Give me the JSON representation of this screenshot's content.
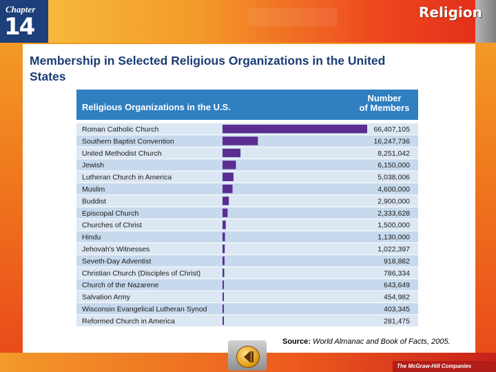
{
  "header": {
    "chapter_label": "Chapter",
    "chapter_number": "14",
    "section": "Religion"
  },
  "page_title": "Membership in Selected Religious Organizations in the United States",
  "source": {
    "label": "Source:",
    "text": "World Almanac and Book of Facts, 2005."
  },
  "footer": {
    "publisher": "The McGraw-Hill Companies"
  },
  "colors": {
    "table_header_bg": "#2f7fc1",
    "row_light": "#dbe7f3",
    "row_dark": "#c7d9ec",
    "bar": "#5b2d91"
  },
  "chart_data": {
    "type": "bar",
    "orientation": "horizontal",
    "title": "",
    "column_headers": [
      "Religious Organizations in the U.S.",
      "Number of Members"
    ],
    "categories": [
      "Roman Catholic Church",
      "Southern Baptist Convention",
      "United Methodist Church",
      "Jewish",
      "Lutheran Church in America",
      "Muslim",
      "Buddist",
      "Episcopal Church",
      "Churches of Christ",
      "Hindu",
      "Jehovah's Witnesses",
      "Seveth-Day Adventist",
      "Christian Church (Disciples of Christ)",
      "Church of the Nazarene",
      "Salvation Army",
      "Wisconsin Evangelical Lutheran Synod",
      "Reformed Church in America"
    ],
    "values": [
      66407105,
      16247736,
      8251042,
      6150000,
      5038006,
      4600000,
      2900000,
      2333628,
      1500000,
      1130000,
      1022397,
      918882,
      786334,
      643649,
      454982,
      403345,
      281475
    ],
    "value_labels": [
      "66,407,105",
      "16,247,736",
      "8,251,042",
      "6,150,000",
      "5,038,006",
      "4,600,000",
      "2,900,000",
      "2,333,628",
      "1,500,000",
      "1,130,000",
      "1,022,397",
      "918,882",
      "786,334",
      "643,649",
      "454,982",
      "403,345",
      "281,475"
    ],
    "xlim": [
      0,
      66407105
    ]
  }
}
